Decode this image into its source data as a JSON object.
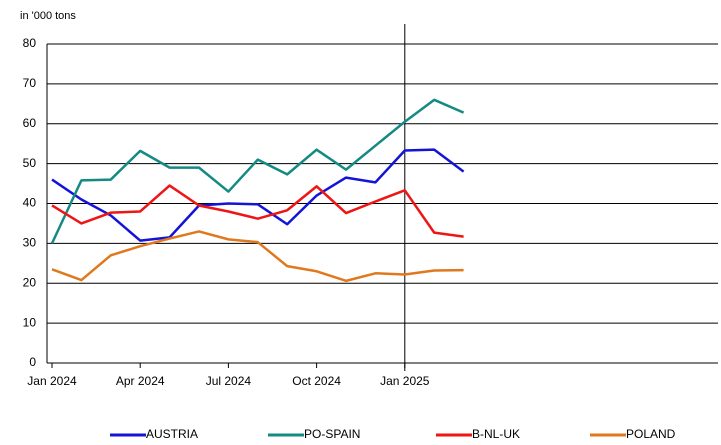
{
  "chart_data": {
    "type": "line",
    "y_label": "in '000 tons",
    "categories": [
      "Jan 2024",
      null,
      null,
      "Apr 2024",
      null,
      null,
      "Jul 2024",
      null,
      null,
      "Oct 2024",
      null,
      null,
      "Jan 2025",
      null,
      null
    ],
    "ylim": [
      0,
      80
    ],
    "yticks": [
      0,
      10,
      20,
      30,
      40,
      50,
      60,
      70,
      80
    ],
    "grid": true,
    "series": [
      {
        "name": "AUSTRIA",
        "color": "#1414d8",
        "values": [
          46,
          41,
          37,
          30.7,
          31.5,
          39.5,
          40,
          39.8,
          34.8,
          42,
          46.5,
          45.3,
          53.3,
          53.5,
          48
        ]
      },
      {
        "name": "PO-SPAIN",
        "color": "#148a82",
        "values": [
          30,
          45.8,
          46,
          53.2,
          49,
          49,
          43,
          51,
          47.3,
          53.5,
          48.5,
          54.5,
          60.5,
          66,
          62.8
        ]
      },
      {
        "name": "B-NL-UK",
        "color": "#ee1515",
        "values": [
          39.5,
          35,
          37.7,
          38,
          44.5,
          39.5,
          38,
          36.2,
          38.3,
          44.3,
          37.6,
          40.5,
          43.3,
          32.7,
          31.7
        ]
      },
      {
        "name": "POLAND",
        "color": "#e0791e",
        "values": [
          23.5,
          20.8,
          27,
          29.3,
          31.2,
          33,
          31,
          30.3,
          24.3,
          23,
          20.6,
          22.5,
          22.2,
          23.2,
          23.3
        ]
      }
    ]
  }
}
